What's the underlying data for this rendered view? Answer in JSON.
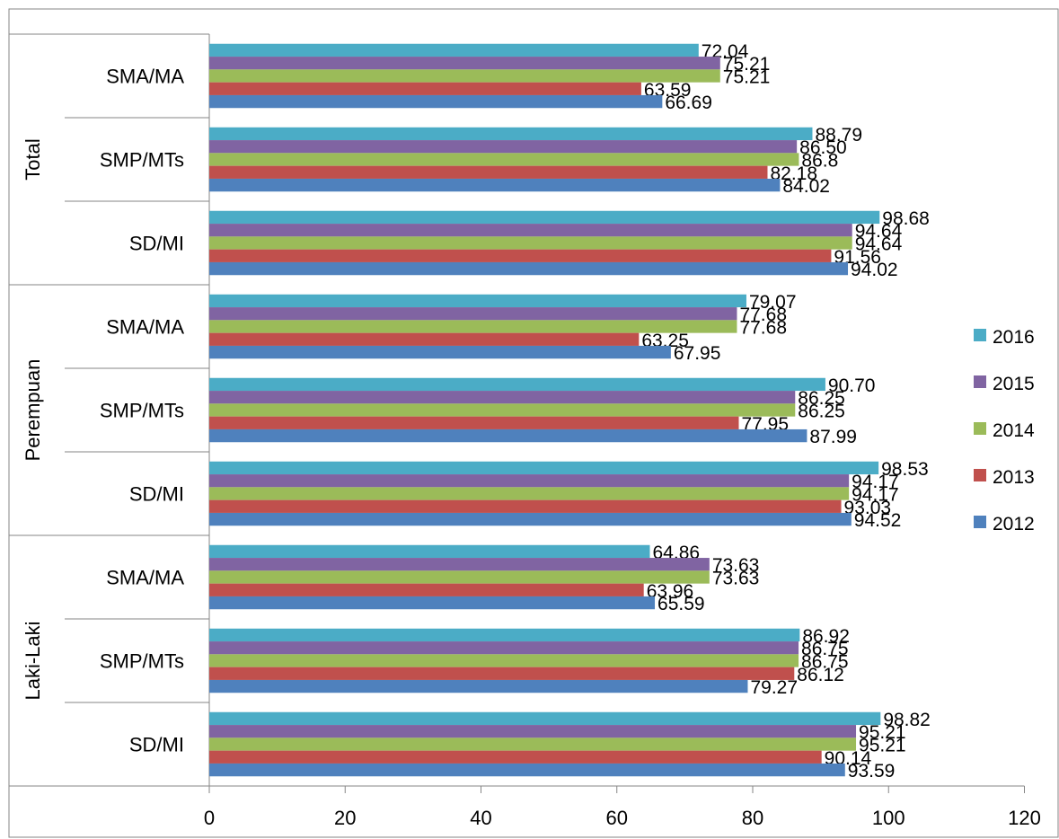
{
  "chart_data": {
    "type": "bar",
    "orientation": "horizontal",
    "title": "",
    "xlabel": "",
    "ylabel": "",
    "xlim": [
      0,
      120
    ],
    "x_ticks": [
      "0",
      "20",
      "40",
      "60",
      "80",
      "100",
      "120"
    ],
    "grid": false,
    "legend_position": "right",
    "groups": [
      {
        "name": "Total",
        "categories": [
          "SMA/MA",
          "SMP/MTs",
          "SD/MI"
        ]
      },
      {
        "name": "Perempuan",
        "categories": [
          "SMA/MA",
          "SMP/MTs",
          "SD/MI"
        ]
      },
      {
        "name": "Laki-Laki",
        "categories": [
          "SMA/MA",
          "SMP/MTs",
          "SD/MI"
        ]
      }
    ],
    "series": [
      {
        "name": "2016",
        "color": "#4bacc6",
        "values": [
          72.04,
          88.79,
          98.68,
          79.07,
          90.7,
          98.53,
          64.86,
          86.92,
          98.82
        ],
        "labels": [
          "72.04",
          "88.79",
          "98.68",
          "79.07",
          "90.70",
          "98.53",
          "64.86",
          "86.92",
          "98.82"
        ]
      },
      {
        "name": "2015",
        "color": "#8064a2",
        "values": [
          75.21,
          86.5,
          94.64,
          77.68,
          86.25,
          94.17,
          73.63,
          86.75,
          95.21
        ],
        "labels": [
          "75.21",
          "86.50",
          "94.64",
          "77.68",
          "86.25",
          "94.17",
          "73.63",
          "86.75",
          "95.21"
        ]
      },
      {
        "name": "2014",
        "color": "#9bbb59",
        "values": [
          75.21,
          86.8,
          94.64,
          77.68,
          86.25,
          94.17,
          73.63,
          86.75,
          95.21
        ],
        "labels": [
          "75.21",
          "86.8",
          "94.64",
          "77.68",
          "86.25",
          "94.17",
          "73.63",
          "86.75",
          "95.21"
        ]
      },
      {
        "name": "2013",
        "color": "#c0504d",
        "values": [
          63.59,
          82.18,
          91.56,
          63.25,
          77.95,
          93.03,
          63.96,
          86.12,
          90.14
        ],
        "labels": [
          "63.59",
          "82.18",
          "91.56",
          "63.25",
          "77.95",
          "93.03",
          "63.96",
          "86.12",
          "90.14"
        ]
      },
      {
        "name": "2012",
        "color": "#4f81bd",
        "values": [
          66.69,
          84.02,
          94.02,
          67.95,
          87.99,
          94.52,
          65.59,
          79.27,
          93.59
        ],
        "labels": [
          "66.69",
          "84.02",
          "94.02",
          "67.95",
          "87.99",
          "94.52",
          "65.59",
          "79.27",
          "93.59"
        ]
      }
    ]
  }
}
